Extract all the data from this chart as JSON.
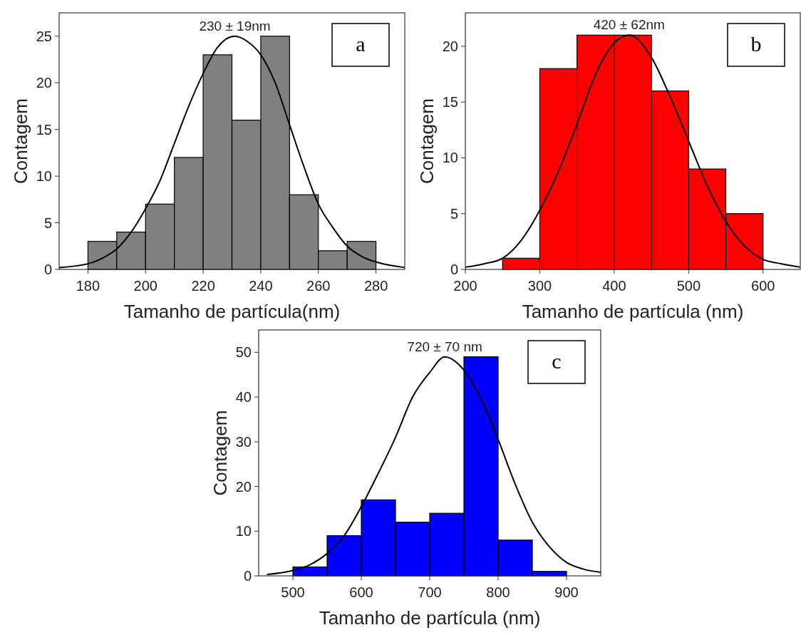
{
  "chart_data": [
    {
      "type": "histogram",
      "xlabel": "Tamanho de partícula(nm)",
      "ylabel": "Contagem",
      "bins": [
        180,
        190,
        200,
        210,
        220,
        230,
        240,
        250,
        260,
        270,
        280
      ],
      "xlim": [
        170,
        290
      ],
      "xticks": [
        180,
        200,
        220,
        240,
        260,
        280
      ],
      "ylim": [
        0,
        27.5
      ],
      "yticks": [
        0,
        5,
        10,
        15,
        20,
        25
      ],
      "annotations": [
        {
          "text": "230 ± 19nm",
          "x": 231,
          "y": 25
        },
        "a"
      ],
      "series": [
        {
          "color": "#808080",
          "values": [
            3,
            4,
            7,
            12,
            23,
            16,
            25,
            8,
            2,
            3
          ]
        },
        {
          "type": "line",
          "color": "#000000",
          "x": [
            170,
            180,
            185,
            190,
            195,
            200,
            205,
            210,
            215,
            220,
            225,
            231,
            235,
            240,
            245,
            250,
            255,
            260,
            265,
            270,
            275,
            280,
            290
          ],
          "values": [
            0.2,
            0.6,
            1.2,
            2.2,
            4,
            6.5,
            9.5,
            13.5,
            17.5,
            21,
            23.8,
            25,
            24.5,
            23,
            20,
            15.5,
            11,
            7,
            4.5,
            2.5,
            1.4,
            0.8,
            0.2
          ]
        }
      ]
    },
    {
      "type": "histogram",
      "xlabel": "Tamanho de partícula (nm)",
      "ylabel": "Contagem",
      "bins": [
        250,
        300,
        350,
        400,
        450,
        500,
        550,
        600
      ],
      "xlim": [
        200,
        650
      ],
      "xticks": [
        200,
        300,
        400,
        500,
        600
      ],
      "ylim": [
        0,
        23
      ],
      "yticks": [
        0,
        5,
        10,
        15,
        20
      ],
      "annotations": [
        {
          "text": "420 ± 62nm",
          "x": 420,
          "y": 21
        },
        "b"
      ],
      "series": [
        {
          "color": "#ff0000",
          "values": [
            1,
            18,
            21,
            21,
            16,
            9,
            5
          ]
        },
        {
          "type": "line",
          "color": "#000000",
          "x": [
            200,
            225,
            250,
            275,
            300,
            325,
            350,
            375,
            400,
            420,
            450,
            475,
            500,
            525,
            550,
            575,
            600,
            625,
            650
          ],
          "values": [
            0.2,
            0.5,
            1,
            2.6,
            5.3,
            8.8,
            13,
            17.5,
            20.3,
            21,
            19,
            15.5,
            11.5,
            7.5,
            4.3,
            2.1,
            0.9,
            0.5,
            0.2
          ]
        }
      ]
    },
    {
      "type": "histogram",
      "xlabel": "Tamanho de partícula (nm)",
      "ylabel": "Contagem",
      "bins": [
        500,
        550,
        600,
        650,
        700,
        750,
        800,
        850,
        900
      ],
      "xlim": [
        450,
        950
      ],
      "xticks": [
        500,
        600,
        700,
        800,
        900
      ],
      "ylim": [
        0,
        55
      ],
      "yticks": [
        0,
        10,
        20,
        30,
        40,
        50
      ],
      "annotations": [
        {
          "text": "720 ± 70 nm",
          "x": 722,
          "y": 49
        },
        "c"
      ],
      "series": [
        {
          "color": "#0000ff",
          "values": [
            2,
            9,
            17,
            12,
            14,
            49,
            8,
            1
          ]
        },
        {
          "type": "line",
          "color": "#000000",
          "x": [
            462,
            500,
            525,
            550,
            575,
            600,
            625,
            650,
            675,
            700,
            722,
            750,
            775,
            800,
            825,
            850,
            875,
            900,
            925,
            950
          ],
          "values": [
            0.3,
            1.2,
            2.5,
            5,
            9,
            15.5,
            23,
            31,
            40,
            45.5,
            49,
            46,
            39.5,
            30.5,
            20.5,
            12,
            6.5,
            3,
            1.5,
            0.8
          ]
        }
      ]
    }
  ]
}
